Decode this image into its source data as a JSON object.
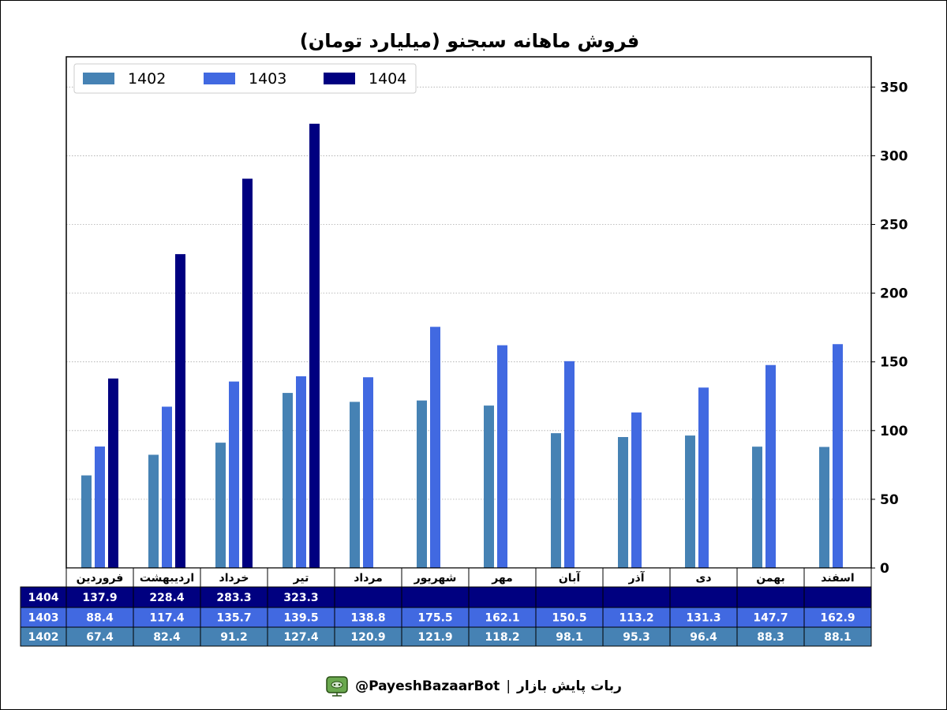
{
  "chart_data": {
    "type": "bar",
    "title": "فروش ماهانه سبجنو (میلیارد تومان)",
    "categories": [
      "فروردین",
      "اردیبهشت",
      "خرداد",
      "تیر",
      "مرداد",
      "شهریور",
      "مهر",
      "آبان",
      "آذر",
      "دی",
      "بهمن",
      "اسفند"
    ],
    "series": [
      {
        "name": "1402",
        "color": "#4682b4",
        "values": [
          67.4,
          82.4,
          91.2,
          127.4,
          120.9,
          121.9,
          118.2,
          98.1,
          95.3,
          96.4,
          88.3,
          88.1
        ]
      },
      {
        "name": "1403",
        "color": "#4169e1",
        "values": [
          88.4,
          117.4,
          135.7,
          139.5,
          138.8,
          175.5,
          162.1,
          150.5,
          113.2,
          131.3,
          147.7,
          162.9
        ]
      },
      {
        "name": "1404",
        "color": "#000080",
        "values": [
          137.9,
          228.4,
          283.3,
          323.3,
          null,
          null,
          null,
          null,
          null,
          null,
          null,
          null
        ]
      }
    ],
    "table_row_order": [
      "1404",
      "1403",
      "1402"
    ],
    "yticks": [
      0,
      50,
      100,
      150,
      200,
      250,
      300,
      350
    ],
    "ylim": [
      0,
      372
    ],
    "y_axis_side": "right",
    "grid": "horizontal dotted",
    "legend": "top-left"
  },
  "footer": {
    "handle": "@PayeshBazaarBot",
    "separator": "|",
    "bot_name": "ربات پایش بازار",
    "icon": "robot-icon"
  }
}
